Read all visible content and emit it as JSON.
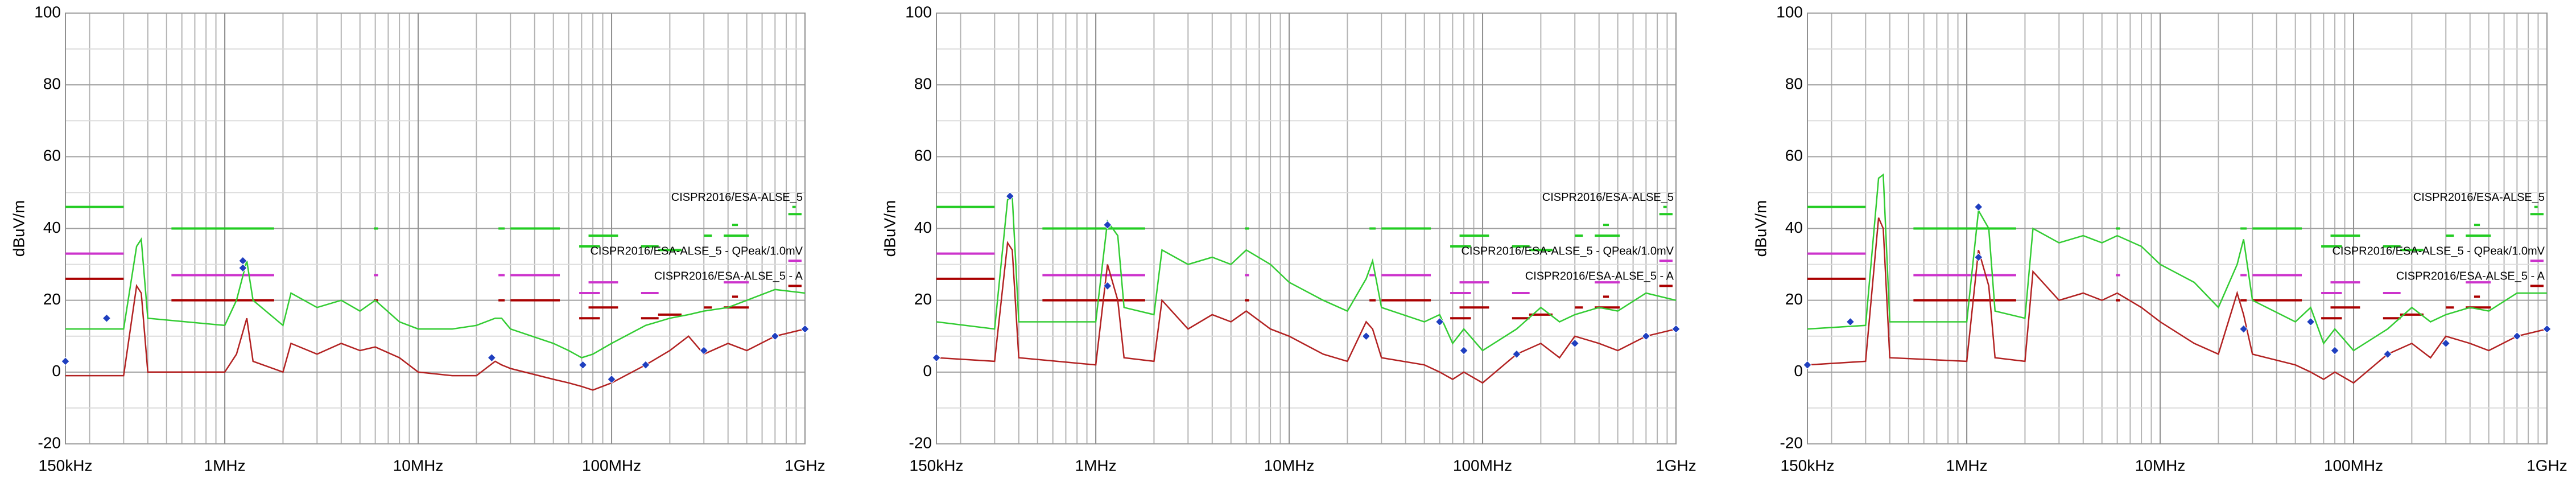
{
  "chart_data": [
    {
      "type": "line",
      "ylabel": "dBuV/m",
      "log_x": true,
      "grid": true,
      "xlim": [
        0.15,
        1000
      ],
      "xticks": [
        {
          "value": 0.15,
          "label": "150kHz"
        },
        {
          "value": 1,
          "label": "1MHz"
        },
        {
          "value": 10,
          "label": "10MHz"
        },
        {
          "value": 100,
          "label": "100MHz"
        },
        {
          "value": 1000,
          "label": "1GHz"
        }
      ],
      "ylim": [
        -20,
        100
      ],
      "yticks": [
        -20,
        0,
        20,
        40,
        60,
        80,
        100
      ],
      "x": [
        0.15,
        0.3,
        0.35,
        0.37,
        0.4,
        1,
        1.15,
        1.3,
        1.4,
        2,
        2.2,
        3,
        4,
        5,
        6,
        8,
        10,
        15,
        20,
        25,
        27,
        30,
        50,
        60,
        70,
        80,
        100,
        150,
        200,
        250,
        300,
        400,
        500,
        700,
        1000
      ],
      "series": [
        {
          "color": "#33cc33",
          "values": [
            12,
            12,
            35,
            37,
            15,
            13,
            20,
            31,
            20,
            13,
            22,
            18,
            20,
            17,
            20,
            14,
            12,
            12,
            13,
            15,
            15,
            12,
            8,
            6,
            4,
            5,
            8,
            13,
            15,
            16,
            17,
            18,
            20,
            23,
            22
          ]
        },
        {
          "color": "#b22222",
          "values": [
            -1,
            -1,
            24,
            22,
            0,
            0,
            5,
            15,
            3,
            0,
            8,
            5,
            8,
            6,
            7,
            4,
            0,
            -1,
            -1,
            3,
            2,
            1,
            -2,
            -3,
            -4,
            -5,
            -3,
            2,
            6,
            10,
            5,
            8,
            6,
            10,
            12
          ]
        }
      ],
      "markers": {
        "color": "#1f3fbf",
        "x": [
          0.15,
          0.245,
          1.24,
          1.24,
          24,
          71,
          100,
          150,
          300,
          700,
          1000
        ],
        "values": [
          3,
          15,
          31,
          29,
          4,
          2,
          -2,
          2,
          6,
          10,
          12
        ]
      },
      "limits": [
        {
          "name": "CISPR2016/ESA-ALSE_5",
          "color": "#22cc22",
          "segments": [
            [
              0.15,
              0.3,
              46
            ],
            [
              0.53,
              1.8,
              40
            ],
            [
              5.9,
              6.2,
              40
            ],
            [
              26,
              28,
              40
            ],
            [
              30,
              54,
              40
            ],
            [
              68,
              87,
              35
            ],
            [
              76,
              108,
              38
            ],
            [
              142,
              175,
              35
            ],
            [
              174,
              230,
              34
            ],
            [
              300,
              330,
              38
            ],
            [
              380,
              512,
              38
            ],
            [
              420,
              450,
              41
            ],
            [
              820,
              960,
              44
            ],
            [
              860,
              895,
              46
            ]
          ]
        },
        {
          "name": "CISPR2016/ESA-ALSE_5 - QPeak/1.0mV",
          "color": "#cc33cc",
          "segments": [
            [
              0.15,
              0.3,
              33
            ],
            [
              0.53,
              1.8,
              27
            ],
            [
              5.9,
              6.2,
              27
            ],
            [
              26,
              28,
              27
            ],
            [
              30,
              54,
              27
            ],
            [
              68,
              87,
              22
            ],
            [
              76,
              108,
              25
            ],
            [
              142,
              175,
              22
            ],
            [
              380,
              512,
              25
            ],
            [
              820,
              960,
              31
            ]
          ]
        },
        {
          "name": "CISPR2016/ESA-ALSE_5 - A",
          "color": "#aa0000",
          "segments": [
            [
              0.15,
              0.3,
              26
            ],
            [
              0.53,
              1.8,
              20
            ],
            [
              5.9,
              6.2,
              20
            ],
            [
              26,
              28,
              20
            ],
            [
              30,
              54,
              20
            ],
            [
              68,
              87,
              15
            ],
            [
              76,
              108,
              18
            ],
            [
              142,
              175,
              15
            ],
            [
              174,
              230,
              16
            ],
            [
              300,
              330,
              18
            ],
            [
              380,
              512,
              18
            ],
            [
              420,
              450,
              21
            ],
            [
              820,
              960,
              24
            ]
          ]
        }
      ]
    },
    {
      "type": "line",
      "ylabel": "dBuV/m",
      "log_x": true,
      "grid": true,
      "xlim": [
        0.15,
        1000
      ],
      "xticks": [
        {
          "value": 0.15,
          "label": "150kHz"
        },
        {
          "value": 1,
          "label": "1MHz"
        },
        {
          "value": 10,
          "label": "10MHz"
        },
        {
          "value": 100,
          "label": "100MHz"
        },
        {
          "value": 1000,
          "label": "1GHz"
        }
      ],
      "ylim": [
        -20,
        100
      ],
      "yticks": [
        -20,
        0,
        20,
        40,
        60,
        80,
        100
      ],
      "x": [
        0.15,
        0.3,
        0.35,
        0.37,
        0.4,
        1,
        1.15,
        1.3,
        1.4,
        2,
        2.2,
        3,
        4,
        5,
        6,
        8,
        10,
        15,
        20,
        25,
        27,
        30,
        50,
        60,
        70,
        80,
        100,
        150,
        200,
        250,
        300,
        400,
        500,
        700,
        1000
      ],
      "series": [
        {
          "color": "#33cc33",
          "values": [
            14,
            12,
            48,
            49,
            14,
            14,
            42,
            38,
            18,
            16,
            34,
            30,
            32,
            30,
            34,
            30,
            25,
            20,
            17,
            26,
            31,
            18,
            14,
            16,
            8,
            12,
            6,
            12,
            18,
            14,
            16,
            18,
            17,
            22,
            20
          ]
        },
        {
          "color": "#b22222",
          "values": [
            4,
            3,
            36,
            34,
            4,
            2,
            30,
            20,
            4,
            3,
            20,
            12,
            16,
            14,
            17,
            12,
            10,
            5,
            3,
            14,
            12,
            4,
            2,
            0,
            -2,
            0,
            -3,
            5,
            8,
            4,
            10,
            8,
            6,
            10,
            12
          ]
        }
      ],
      "markers": {
        "color": "#1f3fbf",
        "x": [
          0.15,
          0.36,
          1.15,
          1.15,
          25,
          60,
          80,
          150,
          300,
          700,
          1000
        ],
        "values": [
          4,
          49,
          41,
          24,
          10,
          14,
          6,
          5,
          8,
          10,
          12
        ]
      },
      "limits": [
        {
          "name": "CISPR2016/ESA-ALSE_5",
          "color": "#22cc22",
          "segments": [
            [
              0.15,
              0.3,
              46
            ],
            [
              0.53,
              1.8,
              40
            ],
            [
              5.9,
              6.2,
              40
            ],
            [
              26,
              28,
              40
            ],
            [
              30,
              54,
              40
            ],
            [
              68,
              87,
              35
            ],
            [
              76,
              108,
              38
            ],
            [
              142,
              175,
              35
            ],
            [
              174,
              230,
              34
            ],
            [
              300,
              330,
              38
            ],
            [
              380,
              512,
              38
            ],
            [
              420,
              450,
              41
            ],
            [
              820,
              960,
              44
            ],
            [
              860,
              895,
              46
            ]
          ]
        },
        {
          "name": "CISPR2016/ESA-ALSE_5 - QPeak/1.0mV",
          "color": "#cc33cc",
          "segments": [
            [
              0.15,
              0.3,
              33
            ],
            [
              0.53,
              1.8,
              27
            ],
            [
              5.9,
              6.2,
              27
            ],
            [
              26,
              28,
              27
            ],
            [
              30,
              54,
              27
            ],
            [
              68,
              87,
              22
            ],
            [
              76,
              108,
              25
            ],
            [
              142,
              175,
              22
            ],
            [
              380,
              512,
              25
            ],
            [
              820,
              960,
              31
            ]
          ]
        },
        {
          "name": "CISPR2016/ESA-ALSE_5 - A",
          "color": "#aa0000",
          "segments": [
            [
              0.15,
              0.3,
              26
            ],
            [
              0.53,
              1.8,
              20
            ],
            [
              5.9,
              6.2,
              20
            ],
            [
              26,
              28,
              20
            ],
            [
              30,
              54,
              20
            ],
            [
              68,
              87,
              15
            ],
            [
              76,
              108,
              18
            ],
            [
              142,
              175,
              15
            ],
            [
              174,
              230,
              16
            ],
            [
              300,
              330,
              18
            ],
            [
              380,
              512,
              18
            ],
            [
              420,
              450,
              21
            ],
            [
              820,
              960,
              24
            ]
          ]
        }
      ]
    },
    {
      "type": "line",
      "ylabel": "dBuV/m",
      "log_x": true,
      "grid": true,
      "xlim": [
        0.15,
        1000
      ],
      "xticks": [
        {
          "value": 0.15,
          "label": "150kHz"
        },
        {
          "value": 1,
          "label": "1MHz"
        },
        {
          "value": 10,
          "label": "10MHz"
        },
        {
          "value": 100,
          "label": "100MHz"
        },
        {
          "value": 1000,
          "label": "1GHz"
        }
      ],
      "ylim": [
        -20,
        100
      ],
      "yticks": [
        -20,
        0,
        20,
        40,
        60,
        80,
        100
      ],
      "x": [
        0.15,
        0.3,
        0.35,
        0.37,
        0.4,
        1,
        1.15,
        1.3,
        1.4,
        2,
        2.2,
        3,
        4,
        5,
        6,
        8,
        10,
        15,
        20,
        25,
        27,
        30,
        50,
        60,
        70,
        80,
        100,
        150,
        200,
        250,
        300,
        400,
        500,
        700,
        1000
      ],
      "series": [
        {
          "color": "#33cc33",
          "values": [
            12,
            13,
            54,
            55,
            14,
            14,
            45,
            40,
            17,
            15,
            40,
            36,
            38,
            36,
            38,
            35,
            30,
            25,
            18,
            30,
            37,
            20,
            14,
            18,
            8,
            12,
            6,
            12,
            18,
            14,
            16,
            18,
            17,
            22,
            22
          ]
        },
        {
          "color": "#b22222",
          "values": [
            2,
            3,
            43,
            40,
            4,
            3,
            34,
            24,
            4,
            3,
            28,
            20,
            22,
            20,
            22,
            18,
            14,
            8,
            5,
            22,
            16,
            5,
            2,
            0,
            -2,
            0,
            -3,
            5,
            8,
            4,
            10,
            8,
            6,
            10,
            12
          ]
        }
      ],
      "markers": {
        "color": "#1f3fbf",
        "x": [
          0.15,
          0.25,
          1.15,
          1.15,
          27,
          60,
          80,
          150,
          300,
          700,
          1000
        ],
        "values": [
          2,
          14,
          46,
          32,
          12,
          14,
          6,
          5,
          8,
          10,
          12
        ]
      },
      "limits": [
        {
          "name": "CISPR2016/ESA-ALSE_5",
          "color": "#22cc22",
          "segments": [
            [
              0.15,
              0.3,
              46
            ],
            [
              0.53,
              1.8,
              40
            ],
            [
              5.9,
              6.2,
              40
            ],
            [
              26,
              28,
              40
            ],
            [
              30,
              54,
              40
            ],
            [
              68,
              87,
              35
            ],
            [
              76,
              108,
              38
            ],
            [
              142,
              175,
              35
            ],
            [
              174,
              230,
              34
            ],
            [
              300,
              330,
              38
            ],
            [
              380,
              512,
              38
            ],
            [
              420,
              450,
              41
            ],
            [
              820,
              960,
              44
            ],
            [
              860,
              895,
              46
            ]
          ]
        },
        {
          "name": "CISPR2016/ESA-ALSE_5 - QPeak/1.0mV",
          "color": "#cc33cc",
          "segments": [
            [
              0.15,
              0.3,
              33
            ],
            [
              0.53,
              1.8,
              27
            ],
            [
              5.9,
              6.2,
              27
            ],
            [
              26,
              28,
              27
            ],
            [
              30,
              54,
              27
            ],
            [
              68,
              87,
              22
            ],
            [
              76,
              108,
              25
            ],
            [
              142,
              175,
              22
            ],
            [
              380,
              512,
              25
            ],
            [
              820,
              960,
              31
            ]
          ]
        },
        {
          "name": "CISPR2016/ESA-ALSE_5 - A",
          "color": "#aa0000",
          "segments": [
            [
              0.15,
              0.3,
              26
            ],
            [
              0.53,
              1.8,
              20
            ],
            [
              5.9,
              6.2,
              20
            ],
            [
              26,
              28,
              20
            ],
            [
              30,
              54,
              20
            ],
            [
              68,
              87,
              15
            ],
            [
              76,
              108,
              18
            ],
            [
              142,
              175,
              15
            ],
            [
              174,
              230,
              16
            ],
            [
              300,
              330,
              18
            ],
            [
              380,
              512,
              18
            ],
            [
              420,
              450,
              21
            ],
            [
              820,
              960,
              24
            ]
          ]
        }
      ]
    }
  ]
}
